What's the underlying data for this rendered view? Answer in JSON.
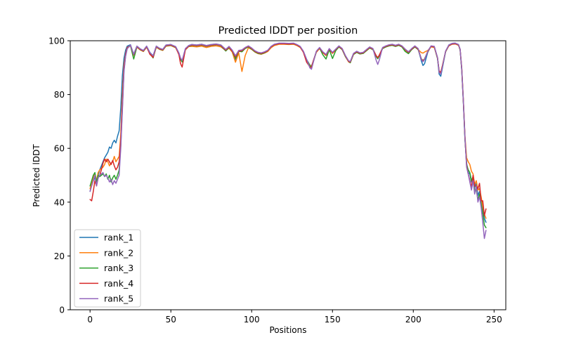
{
  "chart_data": {
    "type": "line",
    "title": "Predicted lDDT per position",
    "xlabel": "Positions",
    "ylabel": "Predicted lDDT",
    "xlim": [
      -12.25,
      257.25
    ],
    "ylim": [
      0,
      100
    ],
    "x_ticks": [
      0,
      50,
      100,
      150,
      200,
      250
    ],
    "y_ticks": [
      0,
      20,
      40,
      60,
      80,
      100
    ],
    "grid": false,
    "legend_loc": "lower left",
    "axis_color": "#000000",
    "legend_border_color": "#cccccc",
    "background_color": "#ffffff",
    "x": [
      0,
      1,
      2,
      3,
      4,
      5,
      6,
      7,
      8,
      9,
      10,
      11,
      12,
      13,
      14,
      15,
      16,
      17,
      18,
      19,
      20,
      21,
      22,
      23,
      25,
      27,
      29,
      31,
      33,
      35,
      37,
      39,
      41,
      43,
      45,
      47,
      50,
      53,
      55,
      56,
      57,
      58,
      59,
      61,
      63,
      66,
      69,
      72,
      75,
      78,
      81,
      84,
      86,
      88,
      90,
      92,
      94,
      96,
      98,
      100,
      102,
      104,
      106,
      108,
      110,
      112,
      114,
      117,
      120,
      123,
      126,
      128,
      130,
      132,
      134,
      136,
      137,
      138,
      140,
      142,
      144,
      146,
      148,
      150,
      152,
      154,
      156,
      158,
      160,
      161,
      163,
      165,
      167,
      169,
      171,
      173,
      175,
      177,
      178,
      179,
      181,
      183,
      185,
      187,
      189,
      191,
      193,
      195,
      197,
      199,
      201,
      203,
      205,
      206,
      207,
      209,
      211,
      213,
      215,
      216,
      217,
      218,
      220,
      222,
      224,
      226,
      228,
      229,
      230,
      231,
      232,
      233,
      234,
      235,
      236,
      237,
      238,
      239,
      240,
      241,
      242,
      243,
      244,
      245
    ],
    "series": [
      {
        "name": "rank_1",
        "color": "#1f77b4",
        "values": [
          44,
          46.5,
          48,
          49,
          47.5,
          50,
          52,
          53.5,
          55,
          56.5,
          57.5,
          58.5,
          60.5,
          60,
          62,
          63,
          62,
          64.5,
          66.5,
          75,
          87,
          93.5,
          96.5,
          98,
          98.5,
          95,
          98,
          97,
          96.4,
          98,
          95.7,
          94.4,
          98,
          97.2,
          96.8,
          98.4,
          98.6,
          97.8,
          95.4,
          93.4,
          92.5,
          94.7,
          97,
          98.2,
          98.6,
          98.4,
          98.7,
          98.2,
          98.6,
          98.8,
          98.4,
          96.6,
          97.8,
          96.2,
          92.5,
          96,
          96.2,
          97.4,
          98,
          97.2,
          96.2,
          95.6,
          95.4,
          95.8,
          96.4,
          97.8,
          98.6,
          99,
          99,
          98.9,
          99,
          98.5,
          97.8,
          96,
          93,
          91,
          90.6,
          92.2,
          96,
          97.4,
          95.8,
          94.8,
          97,
          95.6,
          96.8,
          98,
          97,
          94.4,
          92.4,
          92.2,
          95.2,
          96,
          95.4,
          95.6,
          96.6,
          97.6,
          97,
          94.4,
          93.6,
          94.6,
          97.4,
          98,
          98.4,
          98.6,
          98.2,
          98.6,
          98,
          96.8,
          95.8,
          97,
          98,
          97,
          92.5,
          90.8,
          91.5,
          95.8,
          98,
          97.8,
          93.5,
          87.6,
          86.8,
          89.8,
          96,
          98.4,
          99,
          99.1,
          98.6,
          96.5,
          89,
          77,
          63,
          54.5,
          51,
          50.5,
          47.5,
          49,
          45.5,
          47,
          42.5,
          44,
          41.5,
          38.5,
          34,
          32.5
        ]
      },
      {
        "name": "rank_2",
        "color": "#ff7f0e",
        "values": [
          45,
          47,
          49,
          50.5,
          48,
          51,
          52,
          52.5,
          53,
          54,
          56,
          55,
          53.5,
          54.5,
          55,
          57,
          55,
          56,
          57,
          65,
          80,
          91,
          95,
          97.5,
          98.2,
          94.6,
          97.6,
          96.6,
          96,
          97.6,
          95.2,
          94.2,
          97.6,
          96.8,
          96.4,
          98,
          98.2,
          97.4,
          95,
          93,
          92.2,
          94.3,
          96.6,
          97.8,
          97.9,
          97.7,
          98,
          97.5,
          97.9,
          98.1,
          97.7,
          96.4,
          97.2,
          95.8,
          92,
          95.5,
          88.6,
          94.5,
          97.4,
          96.8,
          95.8,
          95.2,
          95,
          95.4,
          96,
          97.4,
          98.2,
          98.7,
          98.7,
          98.6,
          98.7,
          98.2,
          97.5,
          95.8,
          92.8,
          90.9,
          90.5,
          92.1,
          95.7,
          97.1,
          95.5,
          94.5,
          96.7,
          95.3,
          96.5,
          97.7,
          96.7,
          94.1,
          92.1,
          91.9,
          94.9,
          95.7,
          95.1,
          95.3,
          96.3,
          97.3,
          96.7,
          94.3,
          93.5,
          94.5,
          97.1,
          97.7,
          98.1,
          98.3,
          97.9,
          98.3,
          97.7,
          96.5,
          95.5,
          96.7,
          97.7,
          96.7,
          95.6,
          95.4,
          95.8,
          96.4,
          97.7,
          97.5,
          93.7,
          88.4,
          88.2,
          90.7,
          96.1,
          98.1,
          98.7,
          98.8,
          98.3,
          96.8,
          90,
          78,
          64.5,
          56.5,
          55,
          54,
          51.5,
          50.5,
          46.5,
          48,
          44.5,
          45,
          42,
          38.5,
          35.5,
          34
        ]
      },
      {
        "name": "rank_3",
        "color": "#2ca02c",
        "values": [
          46,
          48,
          50,
          51,
          47.5,
          50,
          49.5,
          50,
          50.5,
          49.5,
          50.5,
          48.5,
          50,
          47.5,
          49,
          50,
          48.5,
          50,
          52,
          61,
          75,
          89,
          94.5,
          97.2,
          98.2,
          93.2,
          97.7,
          96.7,
          96.1,
          97.7,
          95.3,
          93.6,
          97.7,
          96.9,
          96.5,
          98.1,
          98.3,
          97.5,
          95.1,
          93.1,
          92.1,
          94.4,
          96.7,
          97.9,
          98.3,
          98.1,
          98.4,
          97.9,
          98.3,
          98.5,
          98.1,
          96.2,
          97.5,
          96.1,
          93.4,
          96.1,
          95.9,
          97.1,
          97.7,
          96.9,
          95.9,
          95.3,
          95.1,
          95.5,
          96.3,
          97.7,
          98.5,
          98.9,
          98.9,
          98.8,
          98.9,
          98.4,
          97.7,
          95.9,
          92.9,
          90.7,
          90.3,
          91.9,
          95.9,
          97.3,
          94.8,
          93.2,
          96.7,
          93.4,
          96.3,
          97.7,
          96.7,
          94.1,
          92.3,
          91.8,
          94.9,
          95.7,
          95.1,
          95.3,
          96.3,
          97.3,
          96.7,
          94.1,
          93.3,
          94.3,
          97.1,
          97.7,
          98.1,
          98.3,
          97.9,
          98.3,
          97.7,
          96,
          95.2,
          96.7,
          97.7,
          96.7,
          93.3,
          92.6,
          93.3,
          96,
          97.9,
          97.7,
          93.4,
          88.6,
          87.9,
          90.4,
          95.9,
          98.2,
          98.8,
          98.9,
          98.4,
          96.6,
          89.2,
          77.2,
          63.5,
          54,
          52,
          51,
          48,
          49.5,
          44.5,
          44.5,
          41,
          43,
          39.5,
          36,
          31.5,
          30.5
        ]
      },
      {
        "name": "rank_4",
        "color": "#d62728",
        "values": [
          41,
          40.5,
          44,
          48,
          46,
          49,
          50,
          52,
          54.5,
          56,
          55,
          56,
          55,
          54,
          55.5,
          53.5,
          52,
          53,
          55,
          63,
          77,
          90,
          95,
          97.4,
          98.3,
          94.7,
          97.8,
          96.8,
          96.2,
          97.8,
          95,
          93.8,
          97.8,
          97,
          96.6,
          98.2,
          98.4,
          97.6,
          94.8,
          91.5,
          90.2,
          93.5,
          96.7,
          98,
          98.4,
          98.2,
          98.5,
          98,
          98.4,
          98.6,
          98.2,
          96.5,
          97.7,
          96.1,
          94,
          96.1,
          96.3,
          97.3,
          97.9,
          97.1,
          96.1,
          95.5,
          95.3,
          95.7,
          96.3,
          97.7,
          98.5,
          98.9,
          98.9,
          98.8,
          98.9,
          98.4,
          97.7,
          95.7,
          92,
          90.3,
          90,
          92.3,
          95.9,
          97.3,
          95.7,
          94.7,
          96.9,
          95.5,
          96.7,
          97.9,
          96.9,
          94.3,
          92.3,
          92.1,
          95.1,
          95.9,
          95.3,
          95.5,
          96.5,
          97.5,
          96.9,
          94.5,
          93.7,
          94.7,
          97.3,
          97.9,
          98.3,
          98.5,
          98.1,
          98.5,
          97.9,
          96.7,
          95.7,
          96.9,
          97.9,
          96.9,
          93.2,
          92.4,
          93.2,
          96,
          97.9,
          97.7,
          93.6,
          88.8,
          88.2,
          90.6,
          96,
          98.2,
          98.8,
          98.9,
          98.4,
          96.7,
          89.4,
          77.4,
          63.8,
          53.5,
          50.5,
          48,
          45.5,
          50,
          46,
          46,
          45,
          47,
          40.5,
          40.5,
          35,
          37.5
        ]
      },
      {
        "name": "rank_5",
        "color": "#9467bd",
        "values": [
          44,
          46,
          48,
          50,
          46,
          49,
          50,
          50.5,
          51,
          49.5,
          50,
          49,
          47.5,
          48.5,
          46.5,
          48,
          47,
          48.5,
          50,
          60,
          74,
          88.5,
          94.2,
          97,
          98.4,
          94.9,
          98,
          97,
          96.4,
          98,
          95.6,
          94.4,
          98,
          97.2,
          96.8,
          98.4,
          98.6,
          97.8,
          95.4,
          93.6,
          92.7,
          94.9,
          97.1,
          98.2,
          98.6,
          98.4,
          98.7,
          98.2,
          98.6,
          98.8,
          98.4,
          96.8,
          97.9,
          96.5,
          94.4,
          96.4,
          96.6,
          97.5,
          98.1,
          97.3,
          96.3,
          95.7,
          95.5,
          95.9,
          96.5,
          97.9,
          98.7,
          99.1,
          99.1,
          99,
          99.1,
          98.6,
          97.9,
          96.1,
          93.1,
          89.9,
          89.4,
          91.7,
          96.1,
          97.5,
          95.9,
          94.9,
          97.1,
          95.7,
          96.9,
          98.1,
          97.1,
          94.5,
          92.5,
          92.3,
          95.3,
          96.1,
          95.5,
          95.7,
          96.7,
          97.7,
          97.1,
          92.8,
          91.2,
          92.9,
          97.5,
          98.1,
          98.5,
          98.7,
          98.3,
          98.7,
          98.1,
          96.9,
          95.9,
          97.1,
          98.1,
          97.1,
          93,
          92.2,
          93,
          96.2,
          98.1,
          97.9,
          93.8,
          88.2,
          87.6,
          90.2,
          96.2,
          98.4,
          99,
          99.1,
          98.6,
          96.9,
          89.6,
          77.6,
          64,
          53,
          50.5,
          47.5,
          44.5,
          48,
          43,
          46,
          40,
          42,
          38,
          32.5,
          26.5,
          29.5
        ]
      }
    ]
  }
}
